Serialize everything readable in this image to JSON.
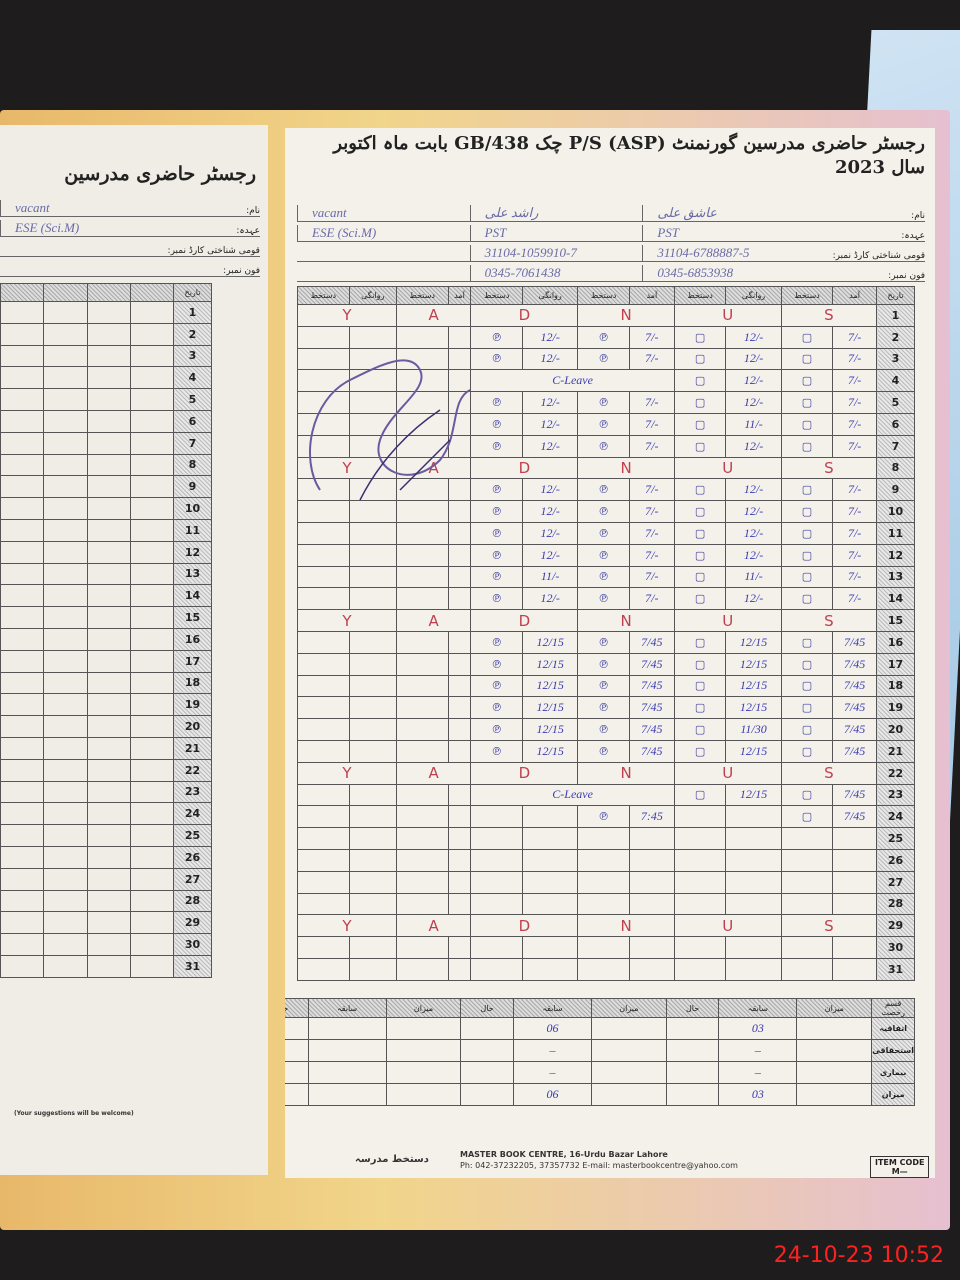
{
  "left_page": {
    "title": "رجسٹر حاضری مدرسین",
    "teacher": {
      "name": "vacant",
      "designation": "ESE (Sci.M)"
    },
    "labels": {
      "name": "نام:",
      "designation": "عہدہ:",
      "cnic": "قومی شناختی کارڈ نمبر:",
      "phone": "فون نمبر:"
    },
    "suggestion": "(Your suggestions will be welcome)"
  },
  "right_page": {
    "title": "رجسٹر حاضری مدرسین گورنمنٹ P/S (ASP) چک 438/GB بابت ماہ اکتوبر سال 2023",
    "labels": {
      "name": "نام:",
      "designation": "عہدہ:",
      "cnic": "قومی شناختی کارڈ نمبر:",
      "phone": "فون نمبر:",
      "date": "تاریخ"
    },
    "teachers": [
      {
        "name": "عاشق علی",
        "designation": "PST",
        "cnic": "31104-6788887-5",
        "phone": "0345-6853938"
      },
      {
        "name": "راشد علی",
        "designation": "PST",
        "cnic": "31104-1059910-7",
        "phone": "0345-7061438"
      },
      {
        "name": "vacant",
        "designation": "ESE (Sci.M)",
        "cnic": "",
        "phone": ""
      }
    ],
    "column_headers": [
      "آمد",
      "دستخط",
      "روانگی",
      "دستخط"
    ],
    "sunday_letters": [
      "S",
      "U",
      "N",
      "D",
      "A",
      "Y"
    ],
    "rows": [
      {
        "day": "1",
        "sunday": true
      },
      {
        "day": "2",
        "t1_in": "7/-",
        "t1_out": "12/-",
        "t2_in": "7/-",
        "t2_out": "12/-"
      },
      {
        "day": "3",
        "t1_in": "7/-",
        "t1_out": "12/-",
        "t2_in": "7/-",
        "t2_out": "12/-"
      },
      {
        "day": "4",
        "t1_in": "7/-",
        "t1_out": "12/-",
        "t2_note": "C-Leave"
      },
      {
        "day": "5",
        "t1_in": "7/-",
        "t1_out": "12/-",
        "t2_in": "7/-",
        "t2_out": "12/-"
      },
      {
        "day": "6",
        "t1_in": "7/-",
        "t1_out": "11/-",
        "t2_in": "7/-",
        "t2_out": "12/-"
      },
      {
        "day": "7",
        "t1_in": "7/-",
        "t1_out": "12/-",
        "t2_in": "7/-",
        "t2_out": "12/-"
      },
      {
        "day": "8",
        "sunday": true
      },
      {
        "day": "9",
        "t1_in": "7/-",
        "t1_out": "12/-",
        "t2_in": "7/-",
        "t2_out": "12/-"
      },
      {
        "day": "10",
        "t1_in": "7/-",
        "t1_out": "12/-",
        "t2_in": "7/-",
        "t2_out": "12/-"
      },
      {
        "day": "11",
        "t1_in": "7/-",
        "t1_out": "12/-",
        "t2_in": "7/-",
        "t2_out": "12/-"
      },
      {
        "day": "12",
        "t1_in": "7/-",
        "t1_out": "12/-",
        "t2_in": "7/-",
        "t2_out": "12/-"
      },
      {
        "day": "13",
        "t1_in": "7/-",
        "t1_out": "11/-",
        "t2_in": "7/-",
        "t2_out": "11/-"
      },
      {
        "day": "14",
        "t1_in": "7/-",
        "t1_out": "12/-",
        "t2_in": "7/-",
        "t2_out": "12/-"
      },
      {
        "day": "15",
        "sunday": true
      },
      {
        "day": "16",
        "t1_in": "7/45",
        "t1_out": "12/15",
        "t2_in": "7/45",
        "t2_out": "12/15"
      },
      {
        "day": "17",
        "t1_in": "7/45",
        "t1_out": "12/15",
        "t2_in": "7/45",
        "t2_out": "12/15"
      },
      {
        "day": "18",
        "t1_in": "7/45",
        "t1_out": "12/15",
        "t2_in": "7/45",
        "t2_out": "12/15"
      },
      {
        "day": "19",
        "t1_in": "7/45",
        "t1_out": "12/15",
        "t2_in": "7/45",
        "t2_out": "12/15"
      },
      {
        "day": "20",
        "t1_in": "7/45",
        "t1_out": "11/30",
        "t2_in": "7/45",
        "t2_out": "12/15"
      },
      {
        "day": "21",
        "t1_in": "7/45",
        "t1_out": "12/15",
        "t2_in": "7/45",
        "t2_out": "12/15"
      },
      {
        "day": "22",
        "sunday": true
      },
      {
        "day": "23",
        "t1_in": "7/45",
        "t1_out": "12/15",
        "t2_note": "C-Leave"
      },
      {
        "day": "24",
        "t1_in": "7/45",
        "t2_in": "7:45"
      },
      {
        "day": "25"
      },
      {
        "day": "26"
      },
      {
        "day": "27"
      },
      {
        "day": "28"
      },
      {
        "day": "29",
        "sunday": true
      },
      {
        "day": "30"
      },
      {
        "day": "31"
      }
    ],
    "summary": {
      "headers": [
        "حال",
        "سابقہ",
        "میزان"
      ],
      "row_labels": [
        "قسم رخصت",
        "اتفاقیہ",
        "استحقاقی",
        "بیماری",
        "میزان"
      ],
      "t1": {
        "casual": "03",
        "earned": "–",
        "sick": "–",
        "total": "03"
      },
      "t2": {
        "casual": "06",
        "earned": "–",
        "sick": "–",
        "total": "06"
      }
    },
    "signature_label": "دستخط مدرسہ",
    "publisher": "MASTER BOOK CENTRE, 16-Urdu Bazar Lahore",
    "publisher_contact": "Ph: 042-37232205, 37357732 E-mail: masterbookcentre@yahoo.com",
    "item_code_label": "ITEM CODE",
    "item_code": "M—"
  },
  "timestamp": "24-10-23  10:52",
  "colors": {
    "ink_blue": "#3b3bb0",
    "ink_red": "#c04050",
    "timestamp": "#ff2020"
  }
}
